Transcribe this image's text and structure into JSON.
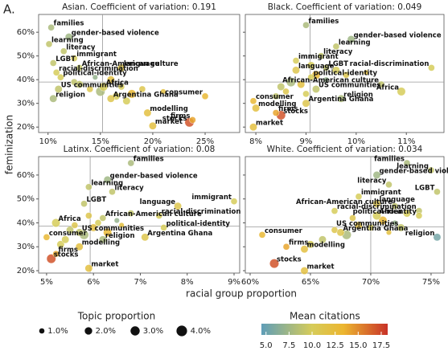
{
  "figure": {
    "panel_label": "A.",
    "x_label": "racial group proportion",
    "y_label": "feminization",
    "size_legend": {
      "title": "Topic proportion",
      "values": [
        {
          "value": 1,
          "label": "1.0%"
        },
        {
          "value": 2,
          "label": "2.0%"
        },
        {
          "value": 3,
          "label": "3.0%"
        },
        {
          "value": 4,
          "label": "4.0%"
        }
      ]
    },
    "color_legend": {
      "title": "Mean citations",
      "clim": [
        4.5,
        18.2
      ],
      "ticks": [
        {
          "value": 5,
          "label": "5.0"
        },
        7.5,
        {
          "value": 10,
          "label": "10.0"
        },
        12.5,
        {
          "value": 15,
          "label": "15.0"
        },
        17.5
      ]
    }
  },
  "chart_data": [
    {
      "type": "scatter",
      "title": "Asian. Coefficient of variation: 0.191",
      "xlim": [
        9.1,
        28.3
      ],
      "xticks": [
        {
          "value": 10,
          "label": "10%"
        },
        {
          "value": 15,
          "label": "15%"
        },
        {
          "value": 20,
          "label": "20%"
        },
        {
          "value": 25,
          "label": "25%"
        }
      ],
      "ylim": [
        17.7,
        67.5
      ],
      "yticks": [
        {
          "value": 20,
          "label": "20%"
        },
        {
          "value": 30,
          "label": "30%"
        },
        {
          "value": 40,
          "label": "40%"
        },
        {
          "value": 50,
          "label": "50%"
        },
        {
          "value": 60,
          "label": "60%"
        }
      ],
      "reference_lines": {
        "x": 15.2,
        "y": 39
      },
      "labels": [
        "families",
        "learning",
        "gender-based violence",
        "literacy",
        "immigrant",
        "LGBT",
        "African-American culture",
        "language",
        "racial-discrimination",
        "political-identity",
        "Africa",
        "US communities",
        "religion",
        "Argentina Ghana",
        "modelling",
        "consumer",
        "market",
        "firms",
        "stocks",
        null,
        null,
        null,
        null,
        null,
        null,
        null,
        null,
        null,
        null,
        null,
        null
      ],
      "x": [
        10.3,
        10.1,
        12,
        11.5,
        12.5,
        10.5,
        13,
        17,
        10.8,
        11.2,
        15.3,
        11,
        10.5,
        16,
        19.5,
        25,
        20,
        23.8,
        23.5,
        13,
        14,
        15,
        16,
        17,
        18,
        14.5,
        16.5,
        19,
        21,
        12.5,
        17.5
      ],
      "y": [
        62,
        55,
        58,
        52,
        49,
        47,
        45,
        45,
        43,
        41,
        37,
        36,
        32,
        32,
        26,
        33,
        20.5,
        23,
        22,
        38,
        36,
        35,
        40,
        37,
        34,
        41,
        33,
        36,
        35,
        39,
        31
      ],
      "size": [
        1.5,
        1.5,
        2,
        1.5,
        1.5,
        1.5,
        1.5,
        2,
        1.5,
        1.5,
        2.5,
        2,
        2,
        2,
        2,
        1.5,
        2,
        1.5,
        3,
        2,
        1.5,
        3,
        2,
        1.5,
        2.5,
        1,
        2,
        1.5,
        1,
        1.5,
        2
      ],
      "citations": [
        8,
        9,
        7.5,
        9,
        10,
        9,
        9,
        11,
        10,
        10,
        10,
        9,
        8,
        11,
        12,
        13,
        12,
        14,
        17,
        9,
        11,
        8,
        12,
        10,
        13,
        7,
        10,
        11,
        12,
        9,
        10
      ]
    },
    {
      "type": "scatter",
      "title": "Black. Coefficient of variation: 0.049",
      "xlim": [
        7.79,
        11.75
      ],
      "xticks": [
        {
          "value": 8,
          "label": "8%"
        },
        {
          "value": 9,
          "label": "9%"
        },
        {
          "value": 10,
          "label": "10%"
        },
        {
          "value": 11,
          "label": "11%"
        }
      ],
      "ylim": [
        17.7,
        67.5
      ],
      "yticks": [
        {
          "value": 20,
          "label": "20%"
        },
        {
          "value": 30,
          "label": "30%"
        },
        {
          "value": 40,
          "label": "40%"
        },
        {
          "value": 50,
          "label": "50%"
        },
        {
          "value": 60,
          "label": "60%"
        }
      ],
      "reference_lines": {
        "x": 9.08,
        "y": 39
      },
      "labels": [
        "families",
        "gender-based violence",
        "learning",
        "literacy",
        "immigrant",
        "LGBT",
        "language",
        "political-identity",
        "racial-discrimination",
        "African-American culture",
        "US communities",
        "Africa",
        "religion",
        "consumer",
        "Argentina Ghana",
        "modelling",
        "firms",
        "stocks",
        "market",
        null,
        null,
        null,
        null,
        null,
        null,
        null,
        null,
        null,
        null,
        null,
        null
      ],
      "x": [
        9.0,
        9.9,
        9.6,
        9.3,
        8.8,
        9.4,
        8.8,
        9.1,
        11.5,
        10.5,
        9.2,
        10.9,
        9.7,
        7.95,
        9.0,
        8.0,
        8.4,
        8.5,
        7.95,
        8.5,
        8.6,
        8.7,
        8.9,
        9.0,
        9.2,
        9.4,
        9.6,
        9.8,
        10.2,
        8.4,
        9.1
      ],
      "y": [
        63,
        57,
        54,
        50,
        48,
        45,
        44,
        41,
        45,
        38,
        36,
        35,
        32,
        31,
        30,
        28,
        26,
        25,
        20,
        37,
        35,
        39,
        38,
        34,
        42,
        40,
        44,
        42,
        43,
        33,
        46
      ],
      "size": [
        1.5,
        2,
        1.5,
        1.5,
        1.5,
        1.5,
        2,
        1.5,
        1.5,
        1.5,
        2,
        2.5,
        2,
        1.5,
        2,
        2,
        1.5,
        3,
        2,
        2,
        1.5,
        3,
        2,
        1.5,
        2.5,
        1,
        2,
        1.5,
        1,
        1.5,
        2
      ],
      "citations": [
        8,
        7.5,
        9,
        9,
        10,
        9,
        11,
        10,
        10,
        9,
        9,
        10,
        8,
        13,
        11,
        12,
        14,
        17,
        12,
        9,
        11,
        8,
        12,
        10,
        13,
        7,
        10,
        11,
        12,
        9,
        10
      ]
    },
    {
      "type": "scatter",
      "title": "Latinx. Coefficient of variation: 0.08",
      "xlim": [
        4.83,
        9.12
      ],
      "xticks": [
        {
          "value": 5,
          "label": "5%"
        },
        {
          "value": 6,
          "label": "6%"
        },
        {
          "value": 7,
          "label": "7%"
        },
        {
          "value": 8,
          "label": "8%"
        },
        {
          "value": 9,
          "label": "9%"
        }
      ],
      "ylim": [
        19,
        67.7
      ],
      "yticks": [
        {
          "value": 20,
          "label": "20%"
        },
        {
          "value": 30,
          "label": "30%"
        },
        {
          "value": 40,
          "label": "40%"
        },
        {
          "value": 50,
          "label": "50%"
        },
        {
          "value": 60,
          "label": "60%"
        }
      ],
      "reference_lines": {
        "x": 5.93,
        "y": 38.7
      },
      "labels": [
        "families",
        "gender-based violence",
        "learning",
        "literacy",
        "LGBT",
        "language",
        "immigrant",
        "racial-discrimination",
        "African-American culture",
        "Africa",
        "political-identity",
        "US communities",
        "Argentina Ghana",
        "consumer",
        "religion",
        "modelling",
        "firms",
        "stocks",
        "market",
        null,
        null,
        null,
        null,
        null,
        null,
        null,
        null,
        null,
        null,
        null,
        null
      ],
      "x": [
        6.8,
        6.3,
        5.9,
        6.4,
        5.8,
        7.8,
        9.0,
        7.4,
        6.2,
        5.2,
        7.5,
        5.7,
        7.1,
        5.0,
        6.2,
        5.7,
        5.2,
        5.1,
        5.9,
        5.5,
        5.6,
        5.8,
        6.0,
        6.1,
        6.3,
        6.5,
        5.4,
        5.9,
        6.6,
        6.8,
        5.3
      ],
      "y": [
        65,
        58,
        55,
        53,
        48,
        47,
        49,
        43,
        42,
        40,
        38,
        36,
        34,
        34,
        33,
        30,
        27,
        25,
        21,
        37,
        39,
        35,
        38,
        40,
        36,
        41,
        33,
        43,
        39,
        44,
        31
      ],
      "size": [
        1.5,
        2,
        1.5,
        1.5,
        1.5,
        2,
        1.5,
        1.5,
        1.5,
        2.5,
        1.5,
        2,
        2,
        1.5,
        2,
        2,
        1.5,
        3,
        2,
        2,
        1.5,
        3,
        2,
        1.5,
        2.5,
        1,
        2,
        1.5,
        1,
        1.5,
        2
      ],
      "citations": [
        8,
        7.5,
        9,
        9,
        9,
        11,
        10,
        10,
        9,
        10,
        10,
        9,
        11,
        13,
        8,
        12,
        14,
        17,
        12,
        9,
        11,
        8,
        12,
        10,
        13,
        7,
        10,
        11,
        12,
        9,
        10
      ]
    },
    {
      "type": "scatter",
      "title": "White. Coefficient of variation: 0.034",
      "xlim": [
        59.6,
        76.07
      ],
      "xticks": [
        {
          "value": 60,
          "label": "60%"
        },
        {
          "value": 65,
          "label": "65%"
        },
        {
          "value": 70,
          "label": "70%"
        },
        {
          "value": 75,
          "label": "75%"
        }
      ],
      "ylim": [
        19,
        67.7
      ],
      "yticks": [
        {
          "value": 20,
          "label": "20%"
        },
        {
          "value": 30,
          "label": "30%"
        },
        {
          "value": 40,
          "label": "40%"
        },
        {
          "value": 50,
          "label": "50%"
        },
        {
          "value": 60,
          "label": "60%"
        }
      ],
      "reference_lines": {
        "x": 70,
        "y": 38.3
      },
      "labels": [
        "families",
        "gender-based violence",
        "learning",
        "literacy",
        "LGBT",
        "immigrant",
        "language",
        "African-American culture",
        "racial-discrimination",
        "political-identity",
        "Africa",
        "US communities",
        "religion",
        "Argentina Ghana",
        "consumer",
        "modelling",
        "firms",
        "stocks",
        "market",
        null,
        null,
        null,
        null,
        null,
        null,
        null,
        null,
        null,
        null,
        null,
        null
      ],
      "x": [
        73,
        70.5,
        75,
        71.5,
        75.5,
        69,
        70.5,
        72,
        67,
        74,
        70.5,
        72.5,
        75.5,
        67.5,
        61,
        64.5,
        63,
        62,
        64.5,
        66,
        67,
        68,
        69,
        70,
        71,
        72,
        73,
        68.5,
        71.5,
        74,
        65
      ],
      "y": [
        65,
        60,
        62,
        56,
        53,
        51,
        48,
        47,
        45,
        43,
        43,
        38,
        34,
        36,
        35,
        29,
        30,
        23,
        20,
        33,
        37,
        35,
        39,
        38,
        41,
        40,
        44,
        42,
        36,
        45,
        31
      ],
      "size": [
        1.5,
        2,
        1.5,
        1.5,
        1.5,
        1.5,
        2,
        1.5,
        1.5,
        1.5,
        2.5,
        2,
        2,
        2,
        1.5,
        2,
        1.5,
        3,
        2,
        2,
        1.5,
        3,
        2,
        1.5,
        2.5,
        1,
        2,
        1.5,
        1,
        1.5,
        2
      ],
      "citations": [
        8,
        7.5,
        9,
        9,
        9,
        10,
        11,
        9,
        10,
        10,
        10,
        9,
        5.5,
        11,
        13,
        12,
        14,
        17,
        12,
        9,
        11,
        8,
        12,
        10,
        13,
        7,
        10,
        11,
        12,
        9,
        10
      ]
    }
  ]
}
